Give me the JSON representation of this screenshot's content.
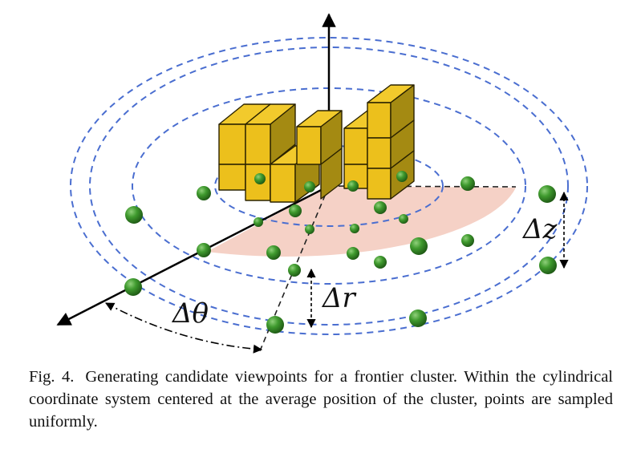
{
  "figure": {
    "labels": {
      "delta_theta": "Δθ",
      "delta_r": "Δr",
      "delta_z": "Δz"
    },
    "colors": {
      "ring": "#4a6ed0",
      "sector_fill": "#f4cfc3",
      "cube_top": "#f2ca2c",
      "cube_front": "#ecc01c",
      "cube_side": "#a48a12",
      "sphere": "#3f9a2e",
      "axis": "#000000"
    }
  },
  "caption": {
    "figure_number": "Fig. 4.",
    "text": "Generating candidate viewpoints for a frontier cluster. Within the cylindrical coordinate system centered at the average position of the cluster, points are sampled uniformly."
  }
}
